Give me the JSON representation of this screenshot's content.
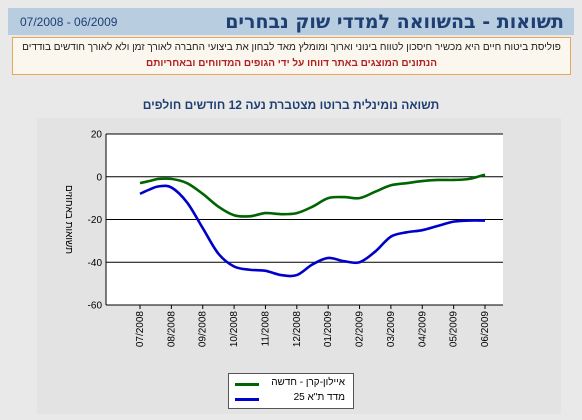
{
  "header": {
    "title": "תשואות - בהשוואה למדדי שוק נבחרים",
    "range": "07/2008 - 06/2009"
  },
  "notice": {
    "line1": "פוליסת ביטוח חיים היא מכשיר חיסכון לטווח בינוני וארוך ומומלץ מאד לבחון את ביצועי החברה לאורך זמן ולא לאורך חודשים בודדים",
    "line2": "הנתונים המוצגים באתר דווחו על ידי הגופים המדווחים ובאחריותם"
  },
  "colors": {
    "header_bg": "#b8cde0",
    "series_green": "#006400",
    "series_blue": "#0000cc"
  },
  "chart_data": {
    "type": "line",
    "title": "תשואה נומינלית ברוטו מצטברת נעה 12 חודשים חולפים",
    "ylabel": "תשואות באחוזים",
    "xlabel": "",
    "ylim": [
      -60,
      20
    ],
    "yticks": [
      20,
      0,
      -20,
      -40,
      -60
    ],
    "xlim": [
      0,
      11.5
    ],
    "categories": [
      "07/2008",
      "08/2008",
      "09/2008",
      "10/2008",
      "11/2008",
      "12/2008",
      "01/2009",
      "02/2009",
      "03/2009",
      "04/2009",
      "05/2009",
      "06/2009"
    ],
    "grid": "horizontal",
    "legend_position": "bottom",
    "series": [
      {
        "name": "איילון-קרן - חדשה",
        "color": "#006400",
        "x": [
          0,
          0.3,
          0.6,
          1,
          1.5,
          2,
          2.5,
          3,
          3.5,
          4,
          4.5,
          5,
          5.5,
          6,
          6.5,
          7,
          7.5,
          8,
          8.5,
          9,
          9.5,
          10,
          10.5,
          11
        ],
        "y": [
          -3,
          -2,
          -1,
          -1,
          -3,
          -8,
          -14,
          -18,
          -18.5,
          -17,
          -17.5,
          -17,
          -14,
          -10,
          -9.5,
          -10,
          -7,
          -4,
          -3,
          -2,
          -1.5,
          -1.5,
          -1,
          1
        ]
      },
      {
        "name": "מדד ת\"א 25",
        "color": "#0000cc",
        "x": [
          0,
          0.3,
          0.6,
          1,
          1.5,
          2,
          2.5,
          3,
          3.5,
          4,
          4.5,
          5,
          5.5,
          6,
          6.5,
          7,
          7.5,
          8,
          8.5,
          9,
          9.5,
          10,
          10.5,
          11
        ],
        "y": [
          -8,
          -6,
          -4.5,
          -5,
          -12,
          -24,
          -36,
          -42,
          -43.5,
          -44,
          -46,
          -46,
          -41,
          -38,
          -39.5,
          -40,
          -35,
          -28,
          -26,
          -25,
          -23,
          -21,
          -20.5,
          -20.5
        ]
      }
    ]
  }
}
